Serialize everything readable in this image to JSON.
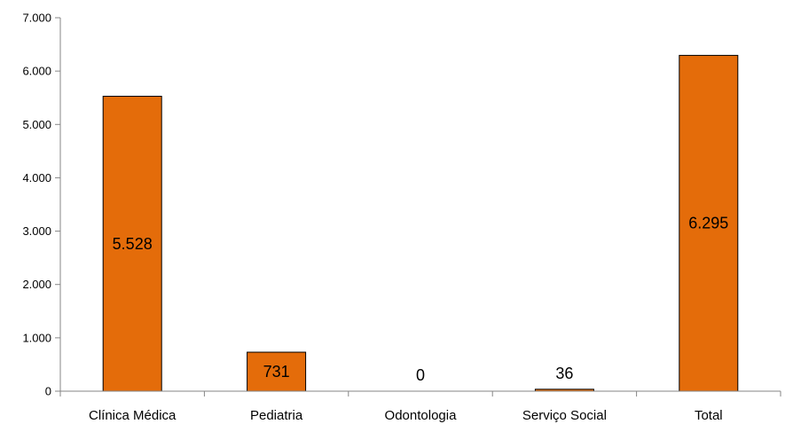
{
  "chart_data": {
    "type": "bar",
    "categories": [
      "Clínica Médica",
      "Pediatria",
      "Odontologia",
      "Serviço Social",
      "Total"
    ],
    "values": [
      5528,
      731,
      0,
      36,
      6295
    ],
    "data_labels": [
      "5.528",
      "731",
      "0",
      "36",
      "6.295"
    ],
    "y_ticks": [
      0,
      1000,
      2000,
      3000,
      4000,
      5000,
      6000,
      7000
    ],
    "y_tick_labels": [
      "0",
      "1.000",
      "2.000",
      "3.000",
      "4.000",
      "5.000",
      "6.000",
      "7.000"
    ],
    "ylim": [
      0,
      7000
    ],
    "title": "",
    "xlabel": "",
    "ylabel": "",
    "grid": false,
    "legend": "none",
    "bar_color": "#E46C0A",
    "bar_edge_color": "#000000"
  }
}
